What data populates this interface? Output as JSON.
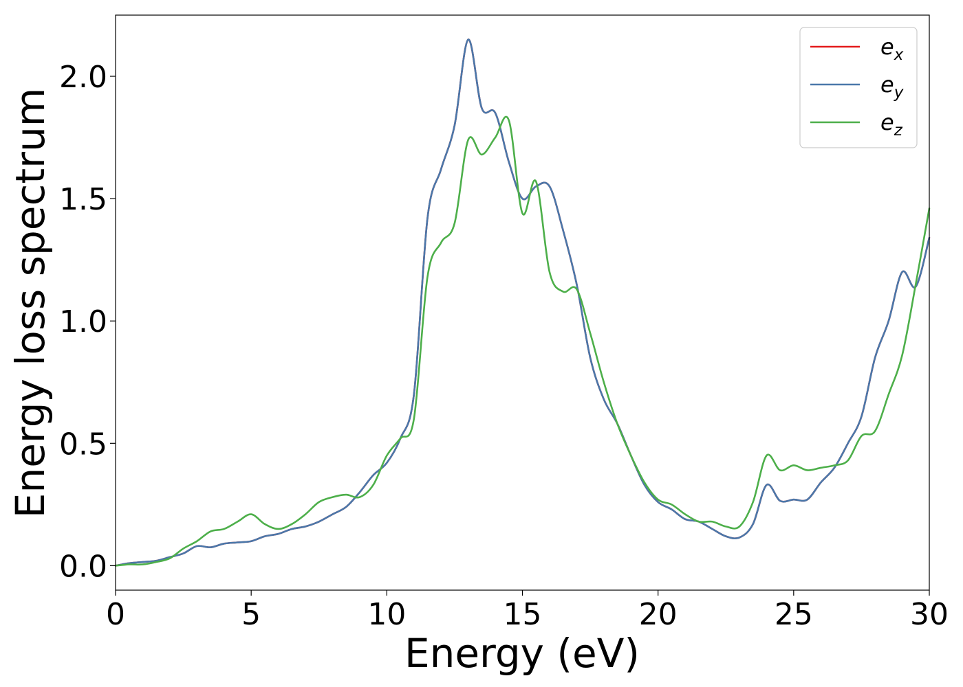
{
  "chart_data": {
    "type": "line",
    "title": "",
    "xlabel": "Energy (eV)",
    "ylabel": "Energy loss spectrum",
    "xlim": [
      0,
      30
    ],
    "ylim": [
      -0.1,
      2.25
    ],
    "xticks": [
      0,
      5,
      10,
      15,
      20,
      25,
      30
    ],
    "yticks": [
      0.0,
      0.5,
      1.0,
      1.5,
      2.0
    ],
    "grid": false,
    "legend_position": "top-right",
    "series": [
      {
        "name": "e_x",
        "label_base": "e",
        "label_sub": "x",
        "color": "#e41a1c",
        "x": [
          0,
          0.5,
          1,
          1.5,
          2,
          2.5,
          3,
          3.5,
          4,
          4.5,
          5,
          5.5,
          6,
          6.5,
          7,
          7.5,
          8,
          8.5,
          9,
          9.5,
          10,
          10.5,
          11,
          11.5,
          12,
          12.5,
          13,
          13.5,
          14,
          14.5,
          15,
          15.5,
          16,
          16.5,
          17,
          17.5,
          18,
          18.5,
          19,
          19.5,
          20,
          20.5,
          21,
          21.5,
          22,
          22.5,
          23,
          23.5,
          24,
          24.5,
          25,
          25.5,
          26,
          26.5,
          27,
          27.5,
          28,
          28.5,
          29,
          29.5,
          30
        ],
        "y": [
          0.0,
          0.01,
          0.015,
          0.02,
          0.035,
          0.05,
          0.08,
          0.075,
          0.09,
          0.095,
          0.1,
          0.12,
          0.13,
          0.15,
          0.16,
          0.18,
          0.21,
          0.24,
          0.3,
          0.37,
          0.42,
          0.52,
          0.7,
          1.42,
          1.62,
          1.8,
          2.15,
          1.87,
          1.85,
          1.65,
          1.5,
          1.55,
          1.55,
          1.37,
          1.15,
          0.85,
          0.68,
          0.58,
          0.45,
          0.33,
          0.26,
          0.23,
          0.19,
          0.18,
          0.15,
          0.12,
          0.115,
          0.17,
          0.33,
          0.265,
          0.27,
          0.27,
          0.34,
          0.4,
          0.5,
          0.61,
          0.85,
          1.0,
          1.2,
          1.14,
          1.34
        ]
      },
      {
        "name": "e_y",
        "label_base": "e",
        "label_sub": "y",
        "color": "#4a78aa",
        "x": [
          0,
          0.5,
          1,
          1.5,
          2,
          2.5,
          3,
          3.5,
          4,
          4.5,
          5,
          5.5,
          6,
          6.5,
          7,
          7.5,
          8,
          8.5,
          9,
          9.5,
          10,
          10.5,
          11,
          11.5,
          12,
          12.5,
          13,
          13.5,
          14,
          14.5,
          15,
          15.5,
          16,
          16.5,
          17,
          17.5,
          18,
          18.5,
          19,
          19.5,
          20,
          20.5,
          21,
          21.5,
          22,
          22.5,
          23,
          23.5,
          24,
          24.5,
          25,
          25.5,
          26,
          26.5,
          27,
          27.5,
          28,
          28.5,
          29,
          29.5,
          30
        ],
        "y": [
          0.0,
          0.01,
          0.015,
          0.02,
          0.035,
          0.05,
          0.08,
          0.075,
          0.09,
          0.095,
          0.1,
          0.12,
          0.13,
          0.15,
          0.16,
          0.18,
          0.21,
          0.24,
          0.3,
          0.37,
          0.42,
          0.52,
          0.7,
          1.42,
          1.62,
          1.8,
          2.15,
          1.87,
          1.85,
          1.65,
          1.5,
          1.55,
          1.55,
          1.37,
          1.15,
          0.85,
          0.68,
          0.58,
          0.45,
          0.33,
          0.26,
          0.23,
          0.19,
          0.18,
          0.15,
          0.12,
          0.115,
          0.17,
          0.33,
          0.265,
          0.27,
          0.27,
          0.34,
          0.4,
          0.5,
          0.61,
          0.85,
          1.0,
          1.2,
          1.14,
          1.34
        ]
      },
      {
        "name": "e_z",
        "label_base": "e",
        "label_sub": "z",
        "color": "#4daf4a",
        "x": [
          0,
          0.5,
          1,
          1.5,
          2,
          2.5,
          3,
          3.5,
          4,
          4.5,
          5,
          5.5,
          6,
          6.5,
          7,
          7.5,
          8,
          8.5,
          9,
          9.5,
          10,
          10.5,
          11,
          11.5,
          12,
          12.5,
          13,
          13.5,
          14,
          14.5,
          15,
          15.5,
          16,
          16.5,
          17,
          17.5,
          18,
          18.5,
          19,
          19.5,
          20,
          20.5,
          21,
          21.5,
          22,
          22.5,
          23,
          23.5,
          24,
          24.5,
          25,
          25.5,
          26,
          26.5,
          27,
          27.5,
          28,
          28.5,
          29,
          29.5,
          30
        ],
        "y": [
          0.0,
          0.005,
          0.005,
          0.015,
          0.03,
          0.07,
          0.1,
          0.14,
          0.15,
          0.18,
          0.21,
          0.17,
          0.15,
          0.17,
          0.21,
          0.26,
          0.28,
          0.29,
          0.28,
          0.33,
          0.45,
          0.52,
          0.6,
          1.18,
          1.32,
          1.4,
          1.74,
          1.68,
          1.75,
          1.82,
          1.44,
          1.57,
          1.2,
          1.12,
          1.13,
          0.95,
          0.75,
          0.58,
          0.45,
          0.34,
          0.27,
          0.25,
          0.21,
          0.18,
          0.18,
          0.16,
          0.16,
          0.26,
          0.45,
          0.39,
          0.41,
          0.39,
          0.4,
          0.41,
          0.43,
          0.53,
          0.55,
          0.7,
          0.86,
          1.15,
          1.46
        ]
      }
    ]
  }
}
